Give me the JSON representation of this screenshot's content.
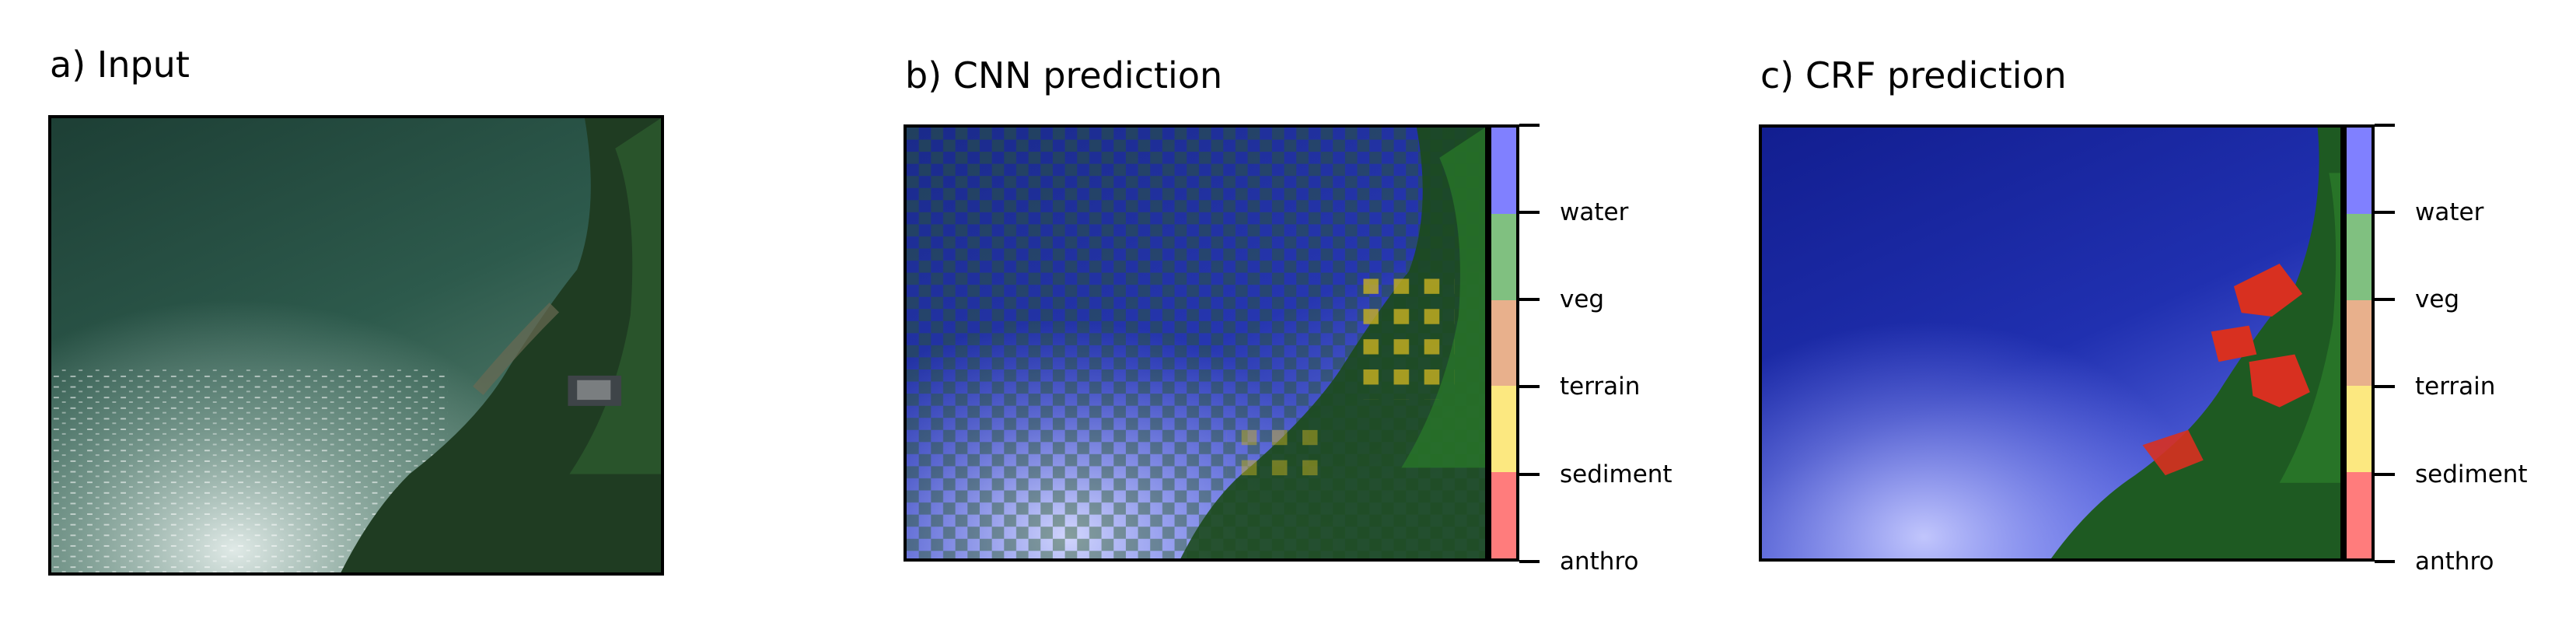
{
  "panels": [
    {
      "title": "a) Input"
    },
    {
      "title": "b) CNN prediction"
    },
    {
      "title": "c) CRF prediction"
    }
  ],
  "colorbar": {
    "classes": [
      {
        "label": "water",
        "color": "#8080ff"
      },
      {
        "label": "veg",
        "color": "#80c080"
      },
      {
        "label": "terrain",
        "color": "#e8b08c"
      },
      {
        "label": "sediment",
        "color": "#fce880"
      },
      {
        "label": "anthro",
        "color": "#ff7c7c"
      }
    ]
  },
  "colors": {
    "water_dark": "#1f4a3e",
    "forest": "#1f3e22",
    "overlay_water": "#1a28a8",
    "overlay_veg": "#2a7a2a",
    "overlay_sediment": "#c8b020",
    "overlay_anthro": "#e03020"
  }
}
